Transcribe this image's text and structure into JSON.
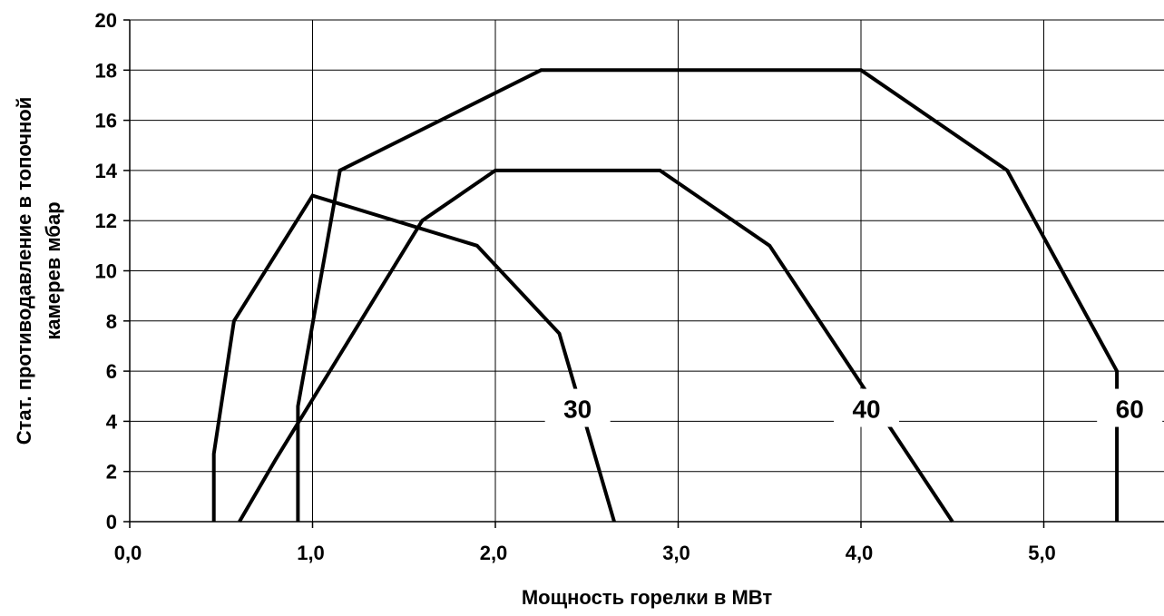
{
  "chart_data": {
    "type": "line",
    "xlabel": "Мощность горелки в МВт",
    "ylabel_line1": "Стат. противодавление в топочной",
    "ylabel_line2": "камерев мбар",
    "xlim": [
      0,
      5.7
    ],
    "ylim": [
      0,
      20
    ],
    "x_ticks": [
      0,
      1,
      2,
      3,
      4,
      5
    ],
    "x_tick_labels": [
      "0,0",
      "1,0",
      "2,0",
      "3,0",
      "4,0",
      "5,0"
    ],
    "y_ticks": [
      0,
      2,
      4,
      6,
      8,
      10,
      12,
      14,
      16,
      18,
      20
    ],
    "y_tick_labels": [
      "0",
      "2",
      "4",
      "6",
      "8",
      "10",
      "12",
      "14",
      "16",
      "18",
      "20"
    ],
    "grid": true,
    "line_color": "#000000",
    "series": [
      {
        "name": "30",
        "label_at": [
          2.45,
          4.5
        ],
        "points": [
          [
            0.46,
            0
          ],
          [
            0.46,
            2.7
          ],
          [
            0.57,
            8
          ],
          [
            1.0,
            13
          ],
          [
            1.9,
            11
          ],
          [
            2.35,
            7.5
          ],
          [
            2.65,
            0
          ]
        ]
      },
      {
        "name": "40",
        "label_at": [
          4.03,
          4.5
        ],
        "points": [
          [
            0.6,
            0
          ],
          [
            0.8,
            2.5
          ],
          [
            1.6,
            12
          ],
          [
            2.0,
            14
          ],
          [
            2.9,
            14
          ],
          [
            3.5,
            11
          ],
          [
            4.5,
            0
          ]
        ]
      },
      {
        "name": "60",
        "label_at": [
          5.47,
          4.5
        ],
        "points": [
          [
            0.92,
            0
          ],
          [
            0.92,
            4.6
          ],
          [
            1.15,
            14
          ],
          [
            2.25,
            18
          ],
          [
            4.0,
            18
          ],
          [
            4.8,
            14
          ],
          [
            5.4,
            6
          ],
          [
            5.4,
            0
          ]
        ]
      }
    ]
  }
}
